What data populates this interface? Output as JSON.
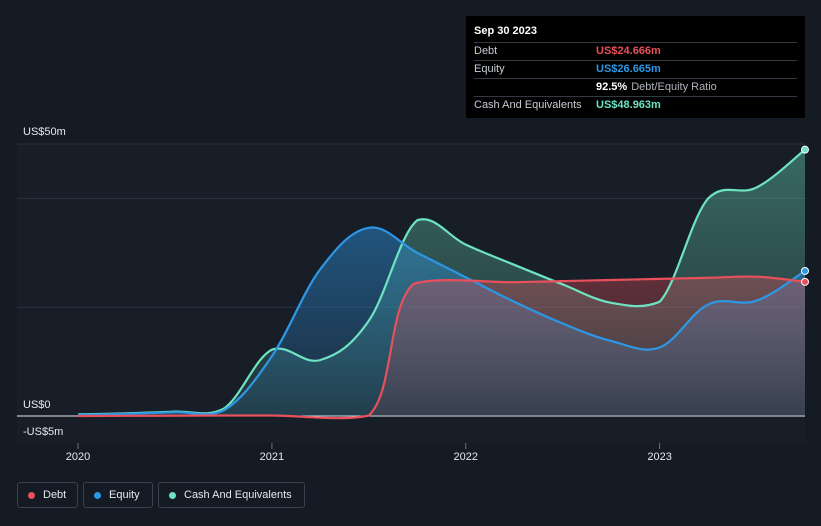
{
  "chart_data": {
    "type": "area",
    "ylabel_top": "US$50m",
    "ylabel_zero": "US$0",
    "ylabel_bottom": "-US$5m",
    "ylim": [
      -5,
      50
    ],
    "x_ticks": [
      "2020",
      "2021",
      "2022",
      "2023"
    ],
    "x_tick_values": [
      2020.0,
      2021.0,
      2022.0,
      2023.0
    ],
    "xlim": [
      2019.84,
      2023.75
    ],
    "series": [
      {
        "name": "Debt",
        "color": "#e8505b",
        "points": [
          [
            2020.0,
            0
          ],
          [
            2020.75,
            0.1
          ],
          [
            2021.0,
            0.1
          ],
          [
            2021.5,
            0.1
          ],
          [
            2021.73,
            24.3
          ],
          [
            2022.25,
            24.6
          ],
          [
            2022.5,
            24.8
          ],
          [
            2022.75,
            25.0
          ],
          [
            2023.0,
            25.2
          ],
          [
            2023.25,
            25.4
          ],
          [
            2023.5,
            25.6
          ],
          [
            2023.75,
            24.666
          ]
        ]
      },
      {
        "name": "Equity",
        "color": "#2d97e6",
        "points": [
          [
            2020.0,
            0.2
          ],
          [
            2020.25,
            0.4
          ],
          [
            2020.5,
            0.7
          ],
          [
            2020.75,
            1.0
          ],
          [
            2021.0,
            11.0
          ],
          [
            2021.25,
            27.0
          ],
          [
            2021.5,
            34.6
          ],
          [
            2021.75,
            30.0
          ],
          [
            2022.0,
            25.5
          ],
          [
            2022.25,
            21.0
          ],
          [
            2022.5,
            17.0
          ],
          [
            2022.75,
            13.8
          ],
          [
            2023.0,
            12.6
          ],
          [
            2023.25,
            20.5
          ],
          [
            2023.5,
            21.2
          ],
          [
            2023.75,
            26.665
          ]
        ]
      },
      {
        "name": "Cash And Equivalents",
        "color": "#6ee3c2",
        "points": [
          [
            2020.0,
            0.3
          ],
          [
            2020.25,
            0.5
          ],
          [
            2020.5,
            0.8
          ],
          [
            2020.75,
            1.3
          ],
          [
            2021.0,
            12.2
          ],
          [
            2021.25,
            10.3
          ],
          [
            2021.5,
            17.5
          ],
          [
            2021.75,
            36.0
          ],
          [
            2022.0,
            31.5
          ],
          [
            2022.25,
            27.8
          ],
          [
            2022.5,
            24.2
          ],
          [
            2022.75,
            20.8
          ],
          [
            2023.0,
            21.0
          ],
          [
            2023.25,
            40.0
          ],
          [
            2023.5,
            42.0
          ],
          [
            2023.75,
            48.963
          ]
        ]
      }
    ],
    "legend": [
      "Debt",
      "Equity",
      "Cash And Equivalents"
    ]
  },
  "tooltip": {
    "date": "Sep 30 2023",
    "rows": [
      {
        "label": "Debt",
        "value": "US$24.666m",
        "color": "#e8505b"
      },
      {
        "label": "Equity",
        "value": "US$26.665m",
        "color": "#2d97e6"
      },
      {
        "label": "",
        "value": "92.5%",
        "extra": "Debt/Equity Ratio",
        "color": "#ffffff"
      },
      {
        "label": "Cash And Equivalents",
        "value": "US$48.963m",
        "color": "#6ee3c2"
      }
    ]
  },
  "legend": [
    {
      "label": "Debt",
      "color": "#e8505b"
    },
    {
      "label": "Equity",
      "color": "#2d97e6"
    },
    {
      "label": "Cash And Equivalents",
      "color": "#6ee3c2"
    }
  ]
}
